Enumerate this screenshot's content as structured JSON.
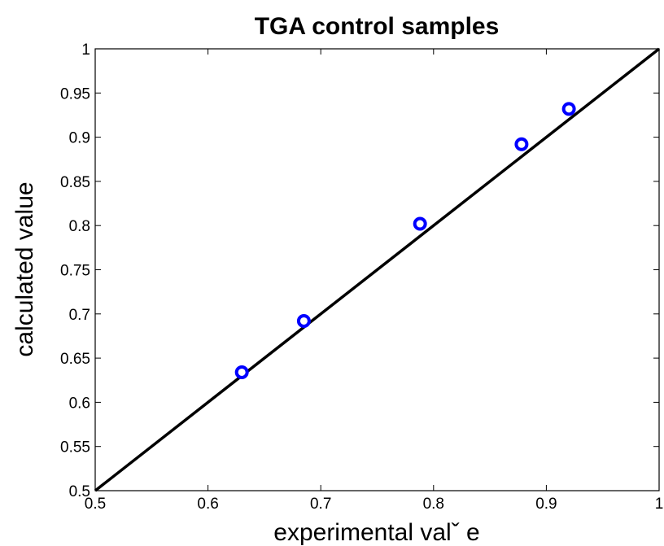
{
  "chart_data": {
    "type": "scatter",
    "title": "TGA control samples",
    "x_label": "experimental valˇ e",
    "y_label": "calculated value",
    "series": [
      {
        "color": "#0000ff",
        "x": [
          0.63,
          0.685,
          0.788,
          0.878,
          0.92
        ],
        "values": [
          0.634,
          0.692,
          0.802,
          0.892,
          0.932
        ]
      }
    ],
    "reference_line": {
      "color": "#000000",
      "x": [
        0.5,
        1
      ],
      "values": [
        0.5,
        1
      ]
    },
    "xlim": [
      0.5,
      1
    ],
    "xticks": [
      0.5,
      0.6,
      0.7,
      0.8,
      0.9,
      1
    ],
    "ylim": [
      0.5,
      1
    ],
    "yticks": [
      0.5,
      0.55,
      0.6,
      0.65,
      0.7,
      0.75,
      0.8,
      0.85,
      0.9,
      0.95,
      1
    ]
  }
}
